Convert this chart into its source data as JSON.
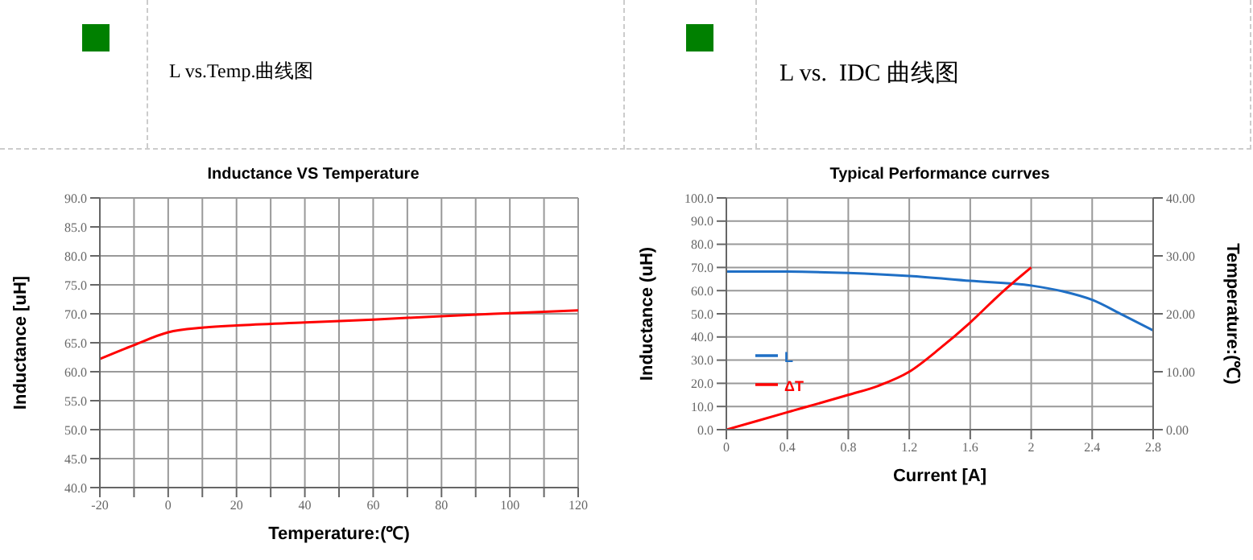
{
  "chart_data": [
    {
      "type": "line",
      "subtitle": "L vs.Temp.曲线图",
      "title": "Inductance VS Temperature",
      "xlabel": "Temperature:(℃)",
      "ylabel": "Inductance [uH]",
      "xlim": [
        -20,
        120
      ],
      "xticks": [
        -20,
        {
          "value": -10,
          "label": null
        },
        0,
        {
          "value": 10,
          "label": null
        },
        20,
        {
          "value": 30,
          "label": null
        },
        40,
        {
          "value": 50,
          "label": null
        },
        60,
        {
          "value": 70,
          "label": null
        },
        80,
        {
          "value": 90,
          "label": null
        },
        100,
        {
          "value": 110,
          "label": null
        },
        120
      ],
      "ylim": [
        40,
        90
      ],
      "yticks": [
        {
          "value": 40,
          "label": "40.0"
        },
        {
          "value": 45,
          "label": "45.0"
        },
        {
          "value": 50,
          "label": "50.0"
        },
        {
          "value": 55,
          "label": "55.0"
        },
        {
          "value": 60,
          "label": "60.0"
        },
        {
          "value": 65,
          "label": "65.0"
        },
        {
          "value": 70,
          "label": "70.0"
        },
        {
          "value": 75,
          "label": "75.0"
        },
        {
          "value": 80,
          "label": "80.0"
        },
        {
          "value": 85,
          "label": "85.0"
        },
        {
          "value": 90,
          "label": "90.0"
        }
      ],
      "grid": true,
      "series": [
        {
          "color": "#ff0000",
          "x": [
            -20,
            -10,
            0,
            10,
            20,
            40,
            60,
            80,
            100,
            120
          ],
          "values": [
            62.2,
            64.6,
            66.8,
            67.6,
            68.0,
            68.5,
            69.0,
            69.6,
            70.1,
            70.6
          ]
        }
      ]
    },
    {
      "type": "line",
      "subtitle": "L vs.  IDC 曲线图",
      "title": "Typical Performance currves",
      "xlabel": "Current [A]",
      "ylabel": "Inductance (uH)",
      "y2label": "Temperature:(℃)",
      "xlim": [
        0,
        2.8
      ],
      "xticks": [
        0,
        0.4,
        0.8,
        1.2,
        1.6,
        2,
        2.4,
        2.8
      ],
      "ylim": [
        0,
        100
      ],
      "yticks": [
        {
          "value": 0,
          "label": "0.0"
        },
        {
          "value": 10,
          "label": "10.0"
        },
        {
          "value": 20,
          "label": "20.0"
        },
        {
          "value": 30,
          "label": "30.0"
        },
        {
          "value": 40,
          "label": "40.0"
        },
        {
          "value": 50,
          "label": "50.0"
        },
        {
          "value": 60,
          "label": "60.0"
        },
        {
          "value": 70,
          "label": "70.0"
        },
        {
          "value": 80,
          "label": "80.0"
        },
        {
          "value": 90,
          "label": "90.0"
        },
        {
          "value": 100,
          "label": "100.0"
        }
      ],
      "y2lim": [
        0,
        40
      ],
      "y2ticks": [
        {
          "value": 0,
          "label": "0.00"
        },
        {
          "value": 10,
          "label": "10.00"
        },
        {
          "value": 20,
          "label": "20.00"
        },
        {
          "value": 30,
          "label": "30.00"
        },
        {
          "value": 40,
          "label": "40.00"
        }
      ],
      "grid": true,
      "legend": "left",
      "series": [
        {
          "name": "L",
          "color": "#1f6fc5",
          "x": [
            0,
            0.4,
            0.8,
            1.2,
            1.6,
            2.0,
            2.2,
            2.4,
            2.6,
            2.8
          ],
          "values": [
            68.2,
            68.2,
            67.6,
            66.3,
            64.2,
            62.2,
            59.8,
            56,
            49.5,
            42.8
          ]
        },
        {
          "name": "ΔT",
          "color": "#ff0000",
          "axis": "y2",
          "x": [
            0,
            0.4,
            0.8,
            1.0,
            1.2,
            1.4,
            1.6,
            1.8,
            2.0
          ],
          "values": [
            0,
            3,
            6,
            7.6,
            10,
            14,
            18.5,
            23.5,
            28
          ]
        }
      ]
    }
  ]
}
